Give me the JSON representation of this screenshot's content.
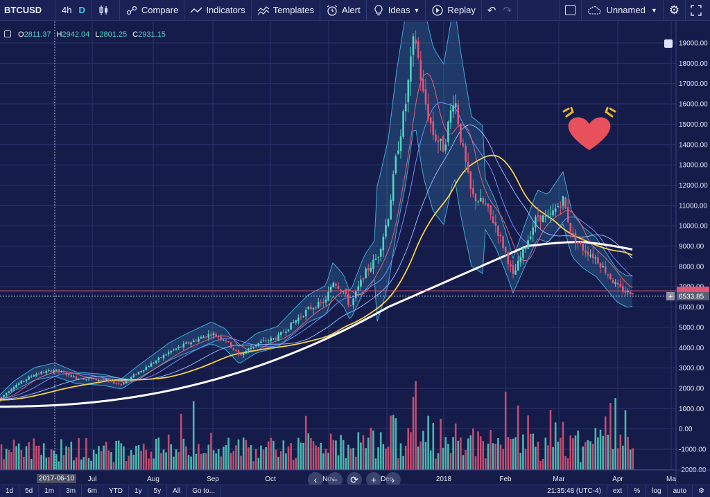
{
  "toolbar": {
    "symbol": "BTCUSD",
    "intervals": [
      "4h",
      "D"
    ],
    "active_interval": "D",
    "compare": "Compare",
    "indicators": "Indicators",
    "templates": "Templates",
    "alert": "Alert",
    "ideas": "Ideas",
    "replay": "Replay",
    "layout_name": "Unnamed"
  },
  "ohlc": {
    "o_label": "O",
    "o": "2811.37",
    "h_label": "H",
    "h": "2942.04",
    "l_label": "L",
    "l": "2801.25",
    "c_label": "C",
    "c": "2931.15"
  },
  "price_axis": {
    "ticks": [
      "19000.00",
      "18000.00",
      "17000.00",
      "16000.00",
      "15000.00",
      "14000.00",
      "13000.00",
      "12000.00",
      "11000.00",
      "10000.00",
      "9000.00",
      "8000.00",
      "7000.00",
      "6000.00",
      "5000.00",
      "4000.00",
      "3000.00",
      "2000.00",
      "1000.00",
      "0.00",
      "-1000.00",
      "-2000.00"
    ],
    "last_price_label": "6533.85",
    "last_price_color": "#e25575"
  },
  "time_axis": {
    "labels": [
      "Jul",
      "Aug",
      "Sep",
      "Oct",
      "Nov",
      "Dec",
      "2018",
      "Feb",
      "Mar",
      "Apr",
      "Ma"
    ],
    "crosshair_date": "2017-06-10"
  },
  "bottombar": {
    "ranges": [
      "1d",
      "5d",
      "1m",
      "3m",
      "6m",
      "YTD",
      "1y",
      "5y",
      "All"
    ],
    "goto": "Go to...",
    "clock": "21:35:48 (UTC-4)",
    "ext": "ext",
    "percent": "%",
    "log": "log",
    "auto": "auto"
  },
  "colors": {
    "background": "#161c4a",
    "up": "#53d2c2",
    "down": "#e25575",
    "ma_yellow": "#f5d04a",
    "ma_white": "#ffffff",
    "bollinger": "#3fa9d6",
    "ma_blue": "#4f8ff0"
  },
  "chart_data": {
    "type": "candlestick",
    "ylim": [
      -2000,
      19700
    ],
    "key_prices": [
      {
        "date": "2017-05",
        "close": 1800
      },
      {
        "date": "2017-06",
        "close": 2900
      },
      {
        "date": "2017-07",
        "close": 2600
      },
      {
        "date": "2017-08",
        "close": 4600
      },
      {
        "date": "2017-09",
        "close": 4300
      },
      {
        "date": "2017-10",
        "close": 6300
      },
      {
        "date": "2017-11",
        "close": 10000
      },
      {
        "date": "2017-12",
        "close": 14000
      },
      {
        "date": "2017-12-17",
        "close": 19500
      },
      {
        "date": "2018-01",
        "close": 11000
      },
      {
        "date": "2018-02",
        "close": 8500
      },
      {
        "date": "2018-03",
        "close": 10500
      },
      {
        "date": "2018-04",
        "close": 6800
      }
    ]
  },
  "icons": {
    "heart": "heart-emoji-icon"
  }
}
